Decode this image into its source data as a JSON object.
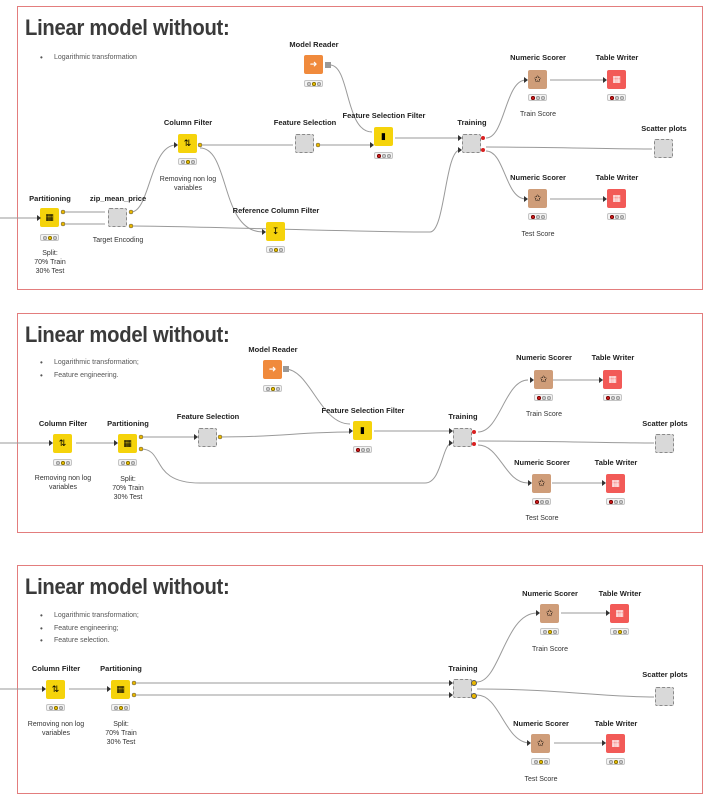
{
  "panels": [
    {
      "title": "Linear model without:",
      "bullets": [
        "Logarithmic transformation"
      ],
      "nodes": {
        "partitioning": {
          "label": "Partitioning",
          "caption": "Split:\n70% Train\n30% Test"
        },
        "zip_mean_price": {
          "label": "zip_mean_price",
          "caption": "Target Encoding"
        },
        "column_filter": {
          "label": "Column Filter",
          "caption": "Removing non log\nvariables"
        },
        "feature_selection": {
          "label": "Feature Selection",
          "caption": ""
        },
        "reference_column_filter": {
          "label": "Reference Column Filter",
          "caption": ""
        },
        "model_reader": {
          "label": "Model Reader",
          "caption": ""
        },
        "feature_selection_filter": {
          "label": "Feature Selection Filter",
          "caption": ""
        },
        "training": {
          "label": "Training",
          "caption": ""
        },
        "numeric_scorer_train": {
          "label": "Numeric Scorer",
          "caption": "Train Score"
        },
        "table_writer_train": {
          "label": "Table Writer",
          "caption": ""
        },
        "scatter_plots": {
          "label": "Scatter plots",
          "caption": ""
        },
        "numeric_scorer_test": {
          "label": "Numeric Scorer",
          "caption": "Test Score"
        },
        "table_writer_test": {
          "label": "Table Writer",
          "caption": ""
        }
      }
    },
    {
      "title": "Linear model without:",
      "bullets": [
        "Logarithmic transformation;",
        "Feature engineering."
      ],
      "nodes": {
        "column_filter": {
          "label": "Column Filter",
          "caption": "Removing non log\nvariables"
        },
        "partitioning": {
          "label": "Partitioning",
          "caption": "Split:\n70% Train\n30% Test"
        },
        "feature_selection": {
          "label": "Feature Selection",
          "caption": ""
        },
        "model_reader": {
          "label": "Model Reader",
          "caption": ""
        },
        "feature_selection_filter": {
          "label": "Feature Selection Filter",
          "caption": ""
        },
        "training": {
          "label": "Training",
          "caption": ""
        },
        "numeric_scorer_train": {
          "label": "Numeric Scorer",
          "caption": "Train Score"
        },
        "table_writer_train": {
          "label": "Table Writer",
          "caption": ""
        },
        "scatter_plots": {
          "label": "Scatter plots",
          "caption": ""
        },
        "numeric_scorer_test": {
          "label": "Numeric Scorer",
          "caption": "Test Score"
        },
        "table_writer_test": {
          "label": "Table Writer",
          "caption": ""
        }
      }
    },
    {
      "title": "Linear model without:",
      "bullets": [
        "Logarithmic transformation;",
        "Feature engineering;",
        "Feature selection."
      ],
      "nodes": {
        "column_filter": {
          "label": "Column Filter",
          "caption": "Removing non log\nvariables"
        },
        "partitioning": {
          "label": "Partitioning",
          "caption": "Split:\n70% Train\n30% Test"
        },
        "training": {
          "label": "Training",
          "caption": ""
        },
        "numeric_scorer_train": {
          "label": "Numeric Scorer",
          "caption": "Train Score"
        },
        "table_writer_train": {
          "label": "Table Writer",
          "caption": ""
        },
        "scatter_plots": {
          "label": "Scatter plots",
          "caption": ""
        },
        "numeric_scorer_test": {
          "label": "Numeric Scorer",
          "caption": "Test Score"
        },
        "table_writer_test": {
          "label": "Table Writer",
          "caption": ""
        }
      }
    }
  ],
  "colors": {
    "panel_border": "#e37d7d",
    "node_yellow": "#f5d30b",
    "node_orange": "#f08a3c",
    "node_tan": "#cf9d79",
    "node_red": "#f25a57",
    "node_meta": "#d9d9d9",
    "wire": "#9a9a9a"
  },
  "icons": {
    "partitioning": "grid-table-icon",
    "column_filter": "filter-arrows-icon",
    "reference_filter": "filter-arrow-down-icon",
    "model_reader": "model-reader-icon",
    "feature_selection_filter": "bars-icon",
    "numeric_scorer": "scorer-icon",
    "table_writer": "table-writer-icon",
    "metanode": "metanode-icon"
  }
}
